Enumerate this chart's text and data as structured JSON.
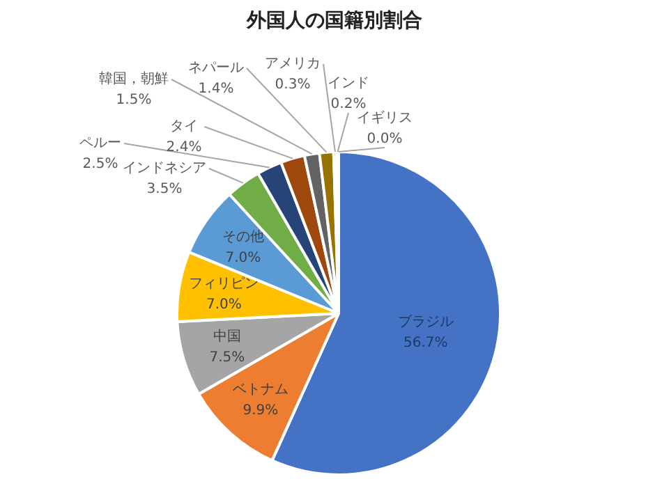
{
  "chart_data": {
    "type": "pie",
    "title": "外国人の国籍別割合",
    "categories": [
      "ブラジル",
      "ベトナム",
      "中国",
      "フィリピン",
      "その他",
      "インドネシア",
      "ペルー",
      "タイ",
      "韓国，朝鮮",
      "ネパール",
      "アメリカ",
      "インド",
      "イギリス"
    ],
    "values": [
      56.7,
      9.9,
      7.5,
      7.0,
      7.0,
      3.5,
      2.5,
      2.4,
      1.5,
      1.4,
      0.3,
      0.2,
      0.0
    ],
    "value_labels": [
      "56.7%",
      "9.9%",
      "7.5%",
      "7.0%",
      "7.0%",
      "3.5%",
      "2.5%",
      "2.4%",
      "1.5%",
      "1.4%",
      "0.3%",
      "0.2%",
      "0.0%"
    ],
    "colors": [
      "#4472c4",
      "#ed7d31",
      "#a5a5a5",
      "#ffc000",
      "#5b9bd5",
      "#70ad47",
      "#264478",
      "#9e480e",
      "#636363",
      "#997300",
      "#255e91",
      "#43682b",
      "#698ed0"
    ],
    "legend": false
  }
}
